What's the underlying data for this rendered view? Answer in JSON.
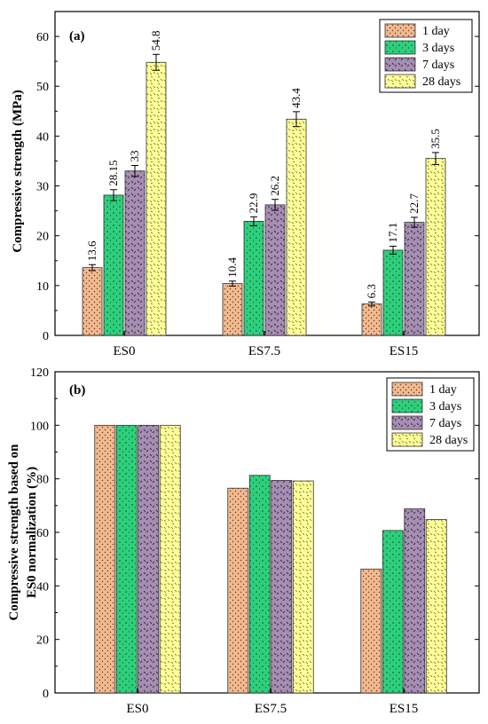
{
  "legend_series": [
    "1 day",
    "3 days",
    "7 days",
    "28 days"
  ],
  "colors": [
    "#f2b98f",
    "#2ecf7c",
    "#a68fb2",
    "#ffff99"
  ],
  "chart_data": [
    {
      "type": "bar",
      "panel": "(a)",
      "categories": [
        "ES0",
        "ES7.5",
        "ES15"
      ],
      "ylabel": "Compressive strength (MPa)",
      "xlabel": "",
      "ylim": [
        0,
        65
      ],
      "yticks": [
        0,
        10,
        20,
        30,
        40,
        50,
        60
      ],
      "legend_position": "top-right",
      "series": [
        {
          "name": "1 day",
          "values": [
            13.6,
            10.4,
            6.3
          ],
          "labels": [
            "13.6",
            "10.4",
            "6.3"
          ],
          "errors": [
            0.6,
            0.5,
            0.4
          ]
        },
        {
          "name": "3 days",
          "values": [
            28.15,
            22.9,
            17.1
          ],
          "labels": [
            "28.15",
            "22.9",
            "17.1"
          ],
          "errors": [
            1.1,
            0.9,
            0.8
          ]
        },
        {
          "name": "7 days",
          "values": [
            33,
            26.2,
            22.7
          ],
          "labels": [
            "33",
            "26.2",
            "22.7"
          ],
          "errors": [
            1.1,
            1.1,
            1.0
          ]
        },
        {
          "name": "28 days",
          "values": [
            54.8,
            43.4,
            35.5
          ],
          "labels": [
            "54.8",
            "43.4",
            "35.5"
          ],
          "errors": [
            1.6,
            1.5,
            1.2
          ]
        }
      ]
    },
    {
      "type": "bar",
      "panel": "(b)",
      "categories": [
        "ES0",
        "ES7.5",
        "ES15"
      ],
      "ylabel_lines": [
        "Compressive strength based on",
        "ES0 normalization (%)"
      ],
      "xlabel": "",
      "ylim": [
        0,
        120
      ],
      "yticks": [
        0,
        20,
        40,
        60,
        80,
        100,
        120
      ],
      "legend_position": "top-right",
      "series": [
        {
          "name": "1 day",
          "values": [
            100,
            76.5,
            46.3
          ]
        },
        {
          "name": "3 days",
          "values": [
            100,
            81.3,
            60.7
          ]
        },
        {
          "name": "7 days",
          "values": [
            100,
            79.4,
            68.8
          ]
        },
        {
          "name": "28 days",
          "values": [
            100,
            79.2,
            64.8
          ]
        }
      ]
    }
  ]
}
